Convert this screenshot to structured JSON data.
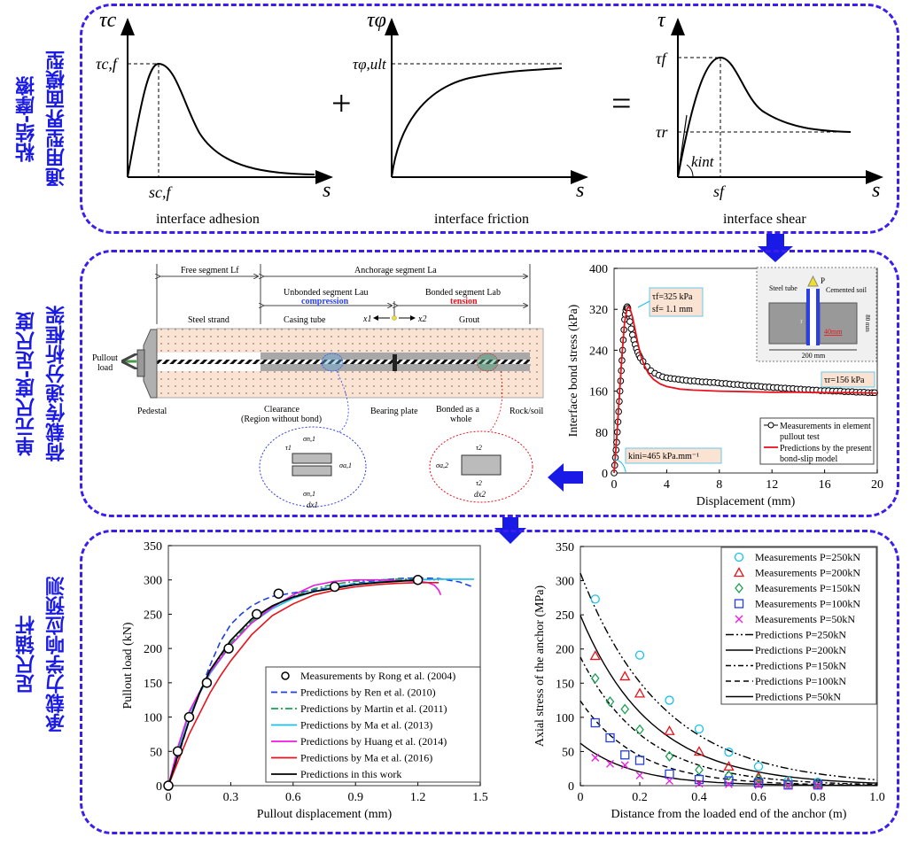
{
  "colors": {
    "panel_border": "#3a1ef0",
    "side_label": "#1a1ae6",
    "arrow": "#1a1ae6"
  },
  "panel1": {
    "side_label": [
      "粘结-摩擦",
      "通用型界面模型"
    ],
    "plus": "+",
    "equals": "=",
    "adhesion": {
      "y_axis": "τc",
      "peak_label": "τc,f",
      "x_mark": "sc,f",
      "x_axis": "s",
      "caption": "interface adhesion"
    },
    "friction": {
      "y_axis": "τφ",
      "ult_label": "τφ,ult",
      "x_axis": "s",
      "caption": "interface friction"
    },
    "shear": {
      "y_axis": "τ",
      "peak_label": "τf",
      "residual_label": "τr",
      "k_label": "kint",
      "x_mark": "sf",
      "x_axis": "s",
      "caption": "interface shear"
    }
  },
  "panel2": {
    "side_label": [
      "单元尺度-足尺度",
      "荷载传递分析框架"
    ],
    "schematic": {
      "free_segment": "Free segment Lf",
      "anchorage_segment": "Anchorage segment La",
      "unbonded_segment": "Unbonded segment Lau",
      "compression": "compression",
      "bonded_segment": "Bonded segment Lab",
      "tension": "tension",
      "steel_strand": "Steel strand",
      "casing_tube": "Casing tube",
      "x1": "x1",
      "x2": "x2",
      "grout": "Grout",
      "pullout_load": [
        "Pullout",
        "load"
      ],
      "pedestal": "Pedestal",
      "clearance": [
        "Clearance",
        "(Region without bond)"
      ],
      "bearing_plate": "Bearing plate",
      "bonded_whole": [
        "Bonded as a",
        "whole"
      ],
      "rock_soil": "Rock/soil",
      "element1": {
        "sigma_n": "σn,1",
        "tau": "τ1",
        "sigma_a": "σa,1",
        "sigma_a_d": "σa,1+dσa,1",
        "dx": "dx1"
      },
      "element2": {
        "tau": "τ2",
        "sigma_a": "σa,2",
        "sigma_a_d": "σa,2+dσa,2",
        "dx": "dx2"
      }
    }
  },
  "panel3": {
    "side_label": [
      "足尺锚杆",
      "承载力学响应预测"
    ]
  },
  "chart_data": [
    {
      "type": "scatter",
      "title": "",
      "xlabel": "Displacement (mm)",
      "ylabel": "Interface bond stress (kPa)",
      "xlim": [
        0,
        20
      ],
      "ylim": [
        0,
        400
      ],
      "xticks": [
        0,
        4,
        8,
        12,
        16,
        20
      ],
      "yticks": [
        0,
        80,
        160,
        240,
        320,
        400
      ],
      "legend_position": "bottom-right",
      "annotations": [
        "τf=325 kPa",
        "sf= 1.1 mm",
        "τr=156 kPa",
        "kini=465 kPa.mm⁻¹"
      ],
      "inset": {
        "steel_tube": "Steel tube",
        "P": "P",
        "cemented_soil": "Cemented soil",
        "tau": "τ",
        "d40": "40mm",
        "h80": "80 mm",
        "w200": "200 mm"
      },
      "series": [
        {
          "name": "Measurements in element pullout test",
          "marker": "circle",
          "color": "#000000",
          "x": [
            0,
            0.05,
            0.1,
            0.15,
            0.2,
            0.25,
            0.3,
            0.35,
            0.4,
            0.45,
            0.5,
            0.55,
            0.6,
            0.65,
            0.7,
            0.75,
            0.8,
            0.85,
            0.9,
            0.95,
            1.0,
            1.05,
            1.1,
            1.2,
            1.3,
            1.4,
            1.5,
            1.6,
            1.7,
            1.8,
            1.9,
            2.0,
            2.2,
            2.5,
            2.8,
            3.1,
            3.4,
            3.7,
            4.0,
            4.3,
            4.6,
            4.9,
            5.2,
            5.5,
            5.8,
            6.1,
            6.4,
            6.7,
            7.0,
            7.3,
            7.6,
            7.9,
            8.2,
            8.5,
            8.8,
            9.1,
            9.4,
            9.7,
            10.0,
            10.3,
            10.6,
            10.9,
            11.2,
            11.5,
            11.8,
            12.1,
            12.4,
            12.7,
            13.0,
            13.3,
            13.6,
            13.9,
            14.2,
            14.5,
            14.8,
            15.1,
            15.4,
            15.7,
            16.0,
            16.3,
            16.6,
            16.9,
            17.2,
            17.5,
            17.8,
            18.1,
            18.4,
            18.7,
            19.0,
            19.3,
            19.6,
            19.8
          ],
          "y": [
            0,
            15,
            30,
            45,
            60,
            80,
            100,
            120,
            140,
            160,
            180,
            200,
            220,
            240,
            260,
            280,
            300,
            310,
            318,
            323,
            325,
            322,
            312,
            296,
            282,
            270,
            260,
            251,
            243,
            236,
            230,
            225,
            218,
            208,
            200,
            195,
            191,
            188,
            186,
            185,
            184,
            183,
            182,
            181,
            180,
            180,
            179,
            178,
            178,
            177,
            177,
            176,
            175,
            175,
            174,
            173,
            173,
            172,
            171,
            171,
            170,
            170,
            169,
            168,
            168,
            167,
            167,
            166,
            166,
            165,
            165,
            164,
            164,
            163,
            163,
            162,
            162,
            161,
            161,
            161,
            160,
            160,
            160,
            159,
            159,
            159,
            158,
            158,
            158,
            157,
            157,
            157
          ]
        },
        {
          "name": "Predictions by the present bond-slip model",
          "line": "solid",
          "color": "#e8121c",
          "x": [
            0,
            0.2,
            0.4,
            0.6,
            0.8,
            1.0,
            1.1,
            1.2,
            1.4,
            1.6,
            1.8,
            2.0,
            2.3,
            2.6,
            3.0,
            3.5,
            4,
            5,
            6,
            8,
            10,
            12,
            14,
            16,
            18,
            20
          ],
          "y": [
            0,
            70,
            150,
            230,
            295,
            322,
            325,
            322,
            305,
            280,
            255,
            232,
            210,
            195,
            183,
            174,
            169,
            164,
            162,
            160,
            159,
            158,
            158,
            157,
            157,
            156
          ]
        }
      ]
    },
    {
      "type": "line",
      "title": "",
      "xlabel": "Pullout displacement (mm)",
      "ylabel": "Pullout load (kN)",
      "xlim": [
        0,
        1.5
      ],
      "ylim": [
        0,
        350
      ],
      "xticks": [
        0,
        0.3,
        0.6,
        0.9,
        1.2,
        1.5
      ],
      "yticks": [
        0,
        50,
        100,
        150,
        200,
        250,
        300,
        350
      ],
      "legend_position": "bottom-right",
      "series": [
        {
          "name": "Measurements by Rong et al. (2004)",
          "style": "markers",
          "color": "#000000",
          "x": [
            0,
            0.045,
            0.1,
            0.185,
            0.29,
            0.425,
            0.53,
            0.8,
            1.2
          ],
          "y": [
            0,
            50,
            100,
            150,
            200,
            250,
            280,
            290,
            300
          ]
        },
        {
          "name": "Predictions by Ren et al. (2010)",
          "style": "dashed",
          "color": "#1f3fe0",
          "x": [
            0,
            0.05,
            0.1,
            0.15,
            0.2,
            0.25,
            0.3,
            0.35,
            0.4,
            0.45,
            0.5,
            0.6,
            0.7,
            0.8,
            0.9,
            1.0,
            1.1,
            1.2,
            1.3,
            1.4,
            1.47
          ],
          "y": [
            0,
            45,
            95,
            135,
            175,
            210,
            235,
            250,
            262,
            270,
            276,
            281,
            285,
            290,
            295,
            299,
            302,
            303,
            302,
            297,
            289
          ]
        },
        {
          "name": "Predictions by Martin et al. (2011)",
          "style": "dashdot",
          "color": "#1aa050",
          "x": [
            0,
            0.05,
            0.1,
            0.2,
            0.3,
            0.4,
            0.5,
            0.6,
            0.7,
            0.8,
            0.9,
            1.0,
            1.1,
            1.2,
            1.3
          ],
          "y": [
            0,
            55,
            105,
            165,
            208,
            240,
            262,
            276,
            287,
            294,
            298,
            300,
            301,
            301,
            300
          ]
        },
        {
          "name": "Predictions by Ma et al. (2013)",
          "style": "solid-x",
          "color": "#18c0ec",
          "x": [
            0,
            0.05,
            0.1,
            0.2,
            0.3,
            0.4,
            0.5,
            0.6,
            0.7,
            0.8,
            0.9,
            1.0,
            1.1,
            1.2,
            1.3,
            1.4,
            1.47
          ],
          "y": [
            0,
            55,
            105,
            163,
            205,
            237,
            258,
            273,
            283,
            290,
            294,
            297,
            299,
            300,
            301,
            301,
            301
          ]
        },
        {
          "name": "Predictions by Huang et al. (2014)",
          "style": "solid",
          "color": "#ee18e0",
          "x": [
            0,
            0.05,
            0.1,
            0.2,
            0.3,
            0.4,
            0.5,
            0.6,
            0.7,
            0.8,
            0.9,
            1.0,
            1.1,
            1.2,
            1.25,
            1.28,
            1.3,
            1.31
          ],
          "y": [
            0,
            60,
            108,
            165,
            205,
            237,
            260,
            278,
            292,
            298,
            300,
            300,
            299,
            298,
            296,
            292,
            285,
            278
          ]
        },
        {
          "name": "Predictions by Ma et al. (2016)",
          "style": "solid-tick",
          "color": "#e8121c",
          "x": [
            0,
            0.05,
            0.1,
            0.15,
            0.2,
            0.25,
            0.3,
            0.4,
            0.5,
            0.6,
            0.7,
            0.8,
            0.9,
            1.0,
            1.1,
            1.2,
            1.3
          ],
          "y": [
            0,
            38,
            75,
            105,
            135,
            160,
            182,
            220,
            248,
            265,
            278,
            285,
            290,
            293,
            295,
            296,
            296
          ]
        },
        {
          "name": "Predictions in this work",
          "style": "solid",
          "color": "#000000",
          "x": [
            0,
            0.05,
            0.1,
            0.15,
            0.2,
            0.3,
            0.4,
            0.5,
            0.6,
            0.7,
            0.8,
            0.9,
            1.0,
            1.1,
            1.2
          ],
          "y": [
            0,
            48,
            95,
            135,
            168,
            212,
            243,
            262,
            275,
            283,
            288,
            293,
            296,
            298,
            300
          ]
        }
      ]
    },
    {
      "type": "scatter",
      "title": "",
      "xlabel": "Distance from the loaded end of the anchor (m)",
      "ylabel": "Axial stress of the anchor (MPa)",
      "xlim": [
        0,
        1.0
      ],
      "ylim": [
        0,
        350
      ],
      "xticks": [
        "0",
        "0.2",
        "0.4",
        "0.6",
        "0.8",
        "1.0"
      ],
      "yticks": [
        0,
        50,
        100,
        150,
        200,
        250,
        300,
        350
      ],
      "legend_position": "top-right",
      "measurements": [
        {
          "name": "Measurements P=250kN",
          "marker": "circle",
          "color": "#18c0ec",
          "x": [
            0.05,
            0.2,
            0.3,
            0.4,
            0.5,
            0.6,
            0.7,
            0.8
          ],
          "y": [
            273,
            191,
            125,
            83,
            49,
            28,
            7,
            5
          ]
        },
        {
          "name": "Measurements P=200kN",
          "marker": "triangle",
          "color": "#e8121c",
          "x": [
            0.05,
            0.15,
            0.2,
            0.3,
            0.4,
            0.5,
            0.6,
            0.7,
            0.8
          ],
          "y": [
            190,
            160,
            135,
            80,
            50,
            28,
            13,
            5,
            3
          ]
        },
        {
          "name": "Measurements P=150kN",
          "marker": "diamond",
          "color": "#1aa050",
          "x": [
            0.05,
            0.1,
            0.15,
            0.2,
            0.3,
            0.4,
            0.5,
            0.6,
            0.7,
            0.8
          ],
          "y": [
            157,
            123,
            112,
            82,
            43,
            23,
            15,
            10,
            3,
            2
          ]
        },
        {
          "name": "Measurements P=100kN",
          "marker": "square",
          "color": "#1f3fe0",
          "x": [
            0.05,
            0.1,
            0.15,
            0.2,
            0.3,
            0.4,
            0.5,
            0.6,
            0.7,
            0.8
          ],
          "y": [
            92,
            70,
            45,
            37,
            17,
            9,
            7,
            4,
            1,
            1
          ]
        },
        {
          "name": "Measurements P=50kN",
          "marker": "x",
          "color": "#ee18e0",
          "x": [
            0.05,
            0.1,
            0.15,
            0.2,
            0.3,
            0.4,
            0.5,
            0.6,
            0.7,
            0.8
          ],
          "y": [
            41,
            32,
            30,
            15,
            7,
            3,
            2,
            1,
            0,
            0
          ]
        }
      ],
      "predictions": [
        {
          "name": "Predictions P=250kN",
          "style": "dashdotdot",
          "y0": 311,
          "decay": 3.6
        },
        {
          "name": "Predictions P=200kN",
          "style": "solid-plus",
          "y0": 249,
          "decay": 4.2
        },
        {
          "name": "Predictions P=150kN",
          "style": "dashdot",
          "y0": 188,
          "decay": 4.6
        },
        {
          "name": "Predictions P=100kN",
          "style": "dashed",
          "y0": 124,
          "decay": 5.2
        },
        {
          "name": "Predictions P=50kN",
          "style": "solid",
          "y0": 62,
          "decay": 5.6
        }
      ]
    }
  ]
}
